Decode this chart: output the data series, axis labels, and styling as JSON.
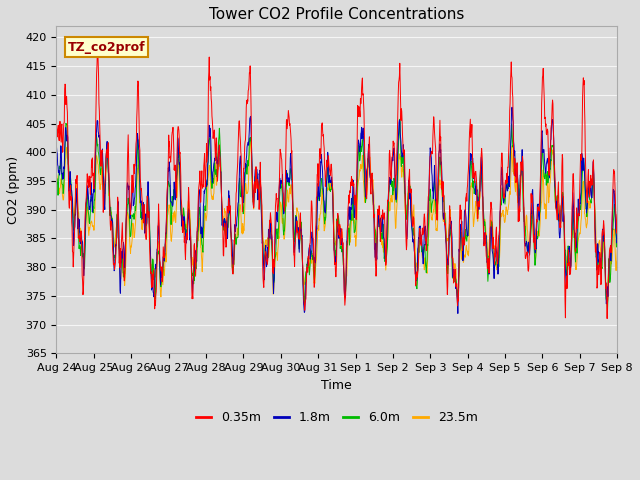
{
  "title": "Tower CO2 Profile Concentrations",
  "xlabel": "Time",
  "ylabel": "CO2 (ppm)",
  "ylim": [
    365,
    422
  ],
  "yticks": [
    365,
    370,
    375,
    380,
    385,
    390,
    395,
    400,
    405,
    410,
    415,
    420
  ],
  "x_labels": [
    "Aug 24",
    "Aug 25",
    "Aug 26",
    "Aug 27",
    "Aug 28",
    "Aug 29",
    "Aug 30",
    "Aug 31",
    "Sep 1",
    "Sep 2",
    "Sep 3",
    "Sep 4",
    "Sep 5",
    "Sep 6",
    "Sep 7",
    "Sep 8"
  ],
  "series_labels": [
    "0.35m",
    "1.8m",
    "6.0m",
    "23.5m"
  ],
  "series_colors": [
    "#ff0000",
    "#0000bb",
    "#00bb00",
    "#ffaa00"
  ],
  "annotation_text": "TZ_co2prof",
  "annotation_bg": "#ffffcc",
  "annotation_border": "#cc8800",
  "fig_bg": "#dcdcdc",
  "plot_bg": "#dcdcdc",
  "grid_color": "#f0f0f0",
  "title_fontsize": 11,
  "axis_label_fontsize": 9,
  "tick_fontsize": 8,
  "legend_fontsize": 9,
  "num_days": 15,
  "points_per_day": 96,
  "seed": 12345
}
